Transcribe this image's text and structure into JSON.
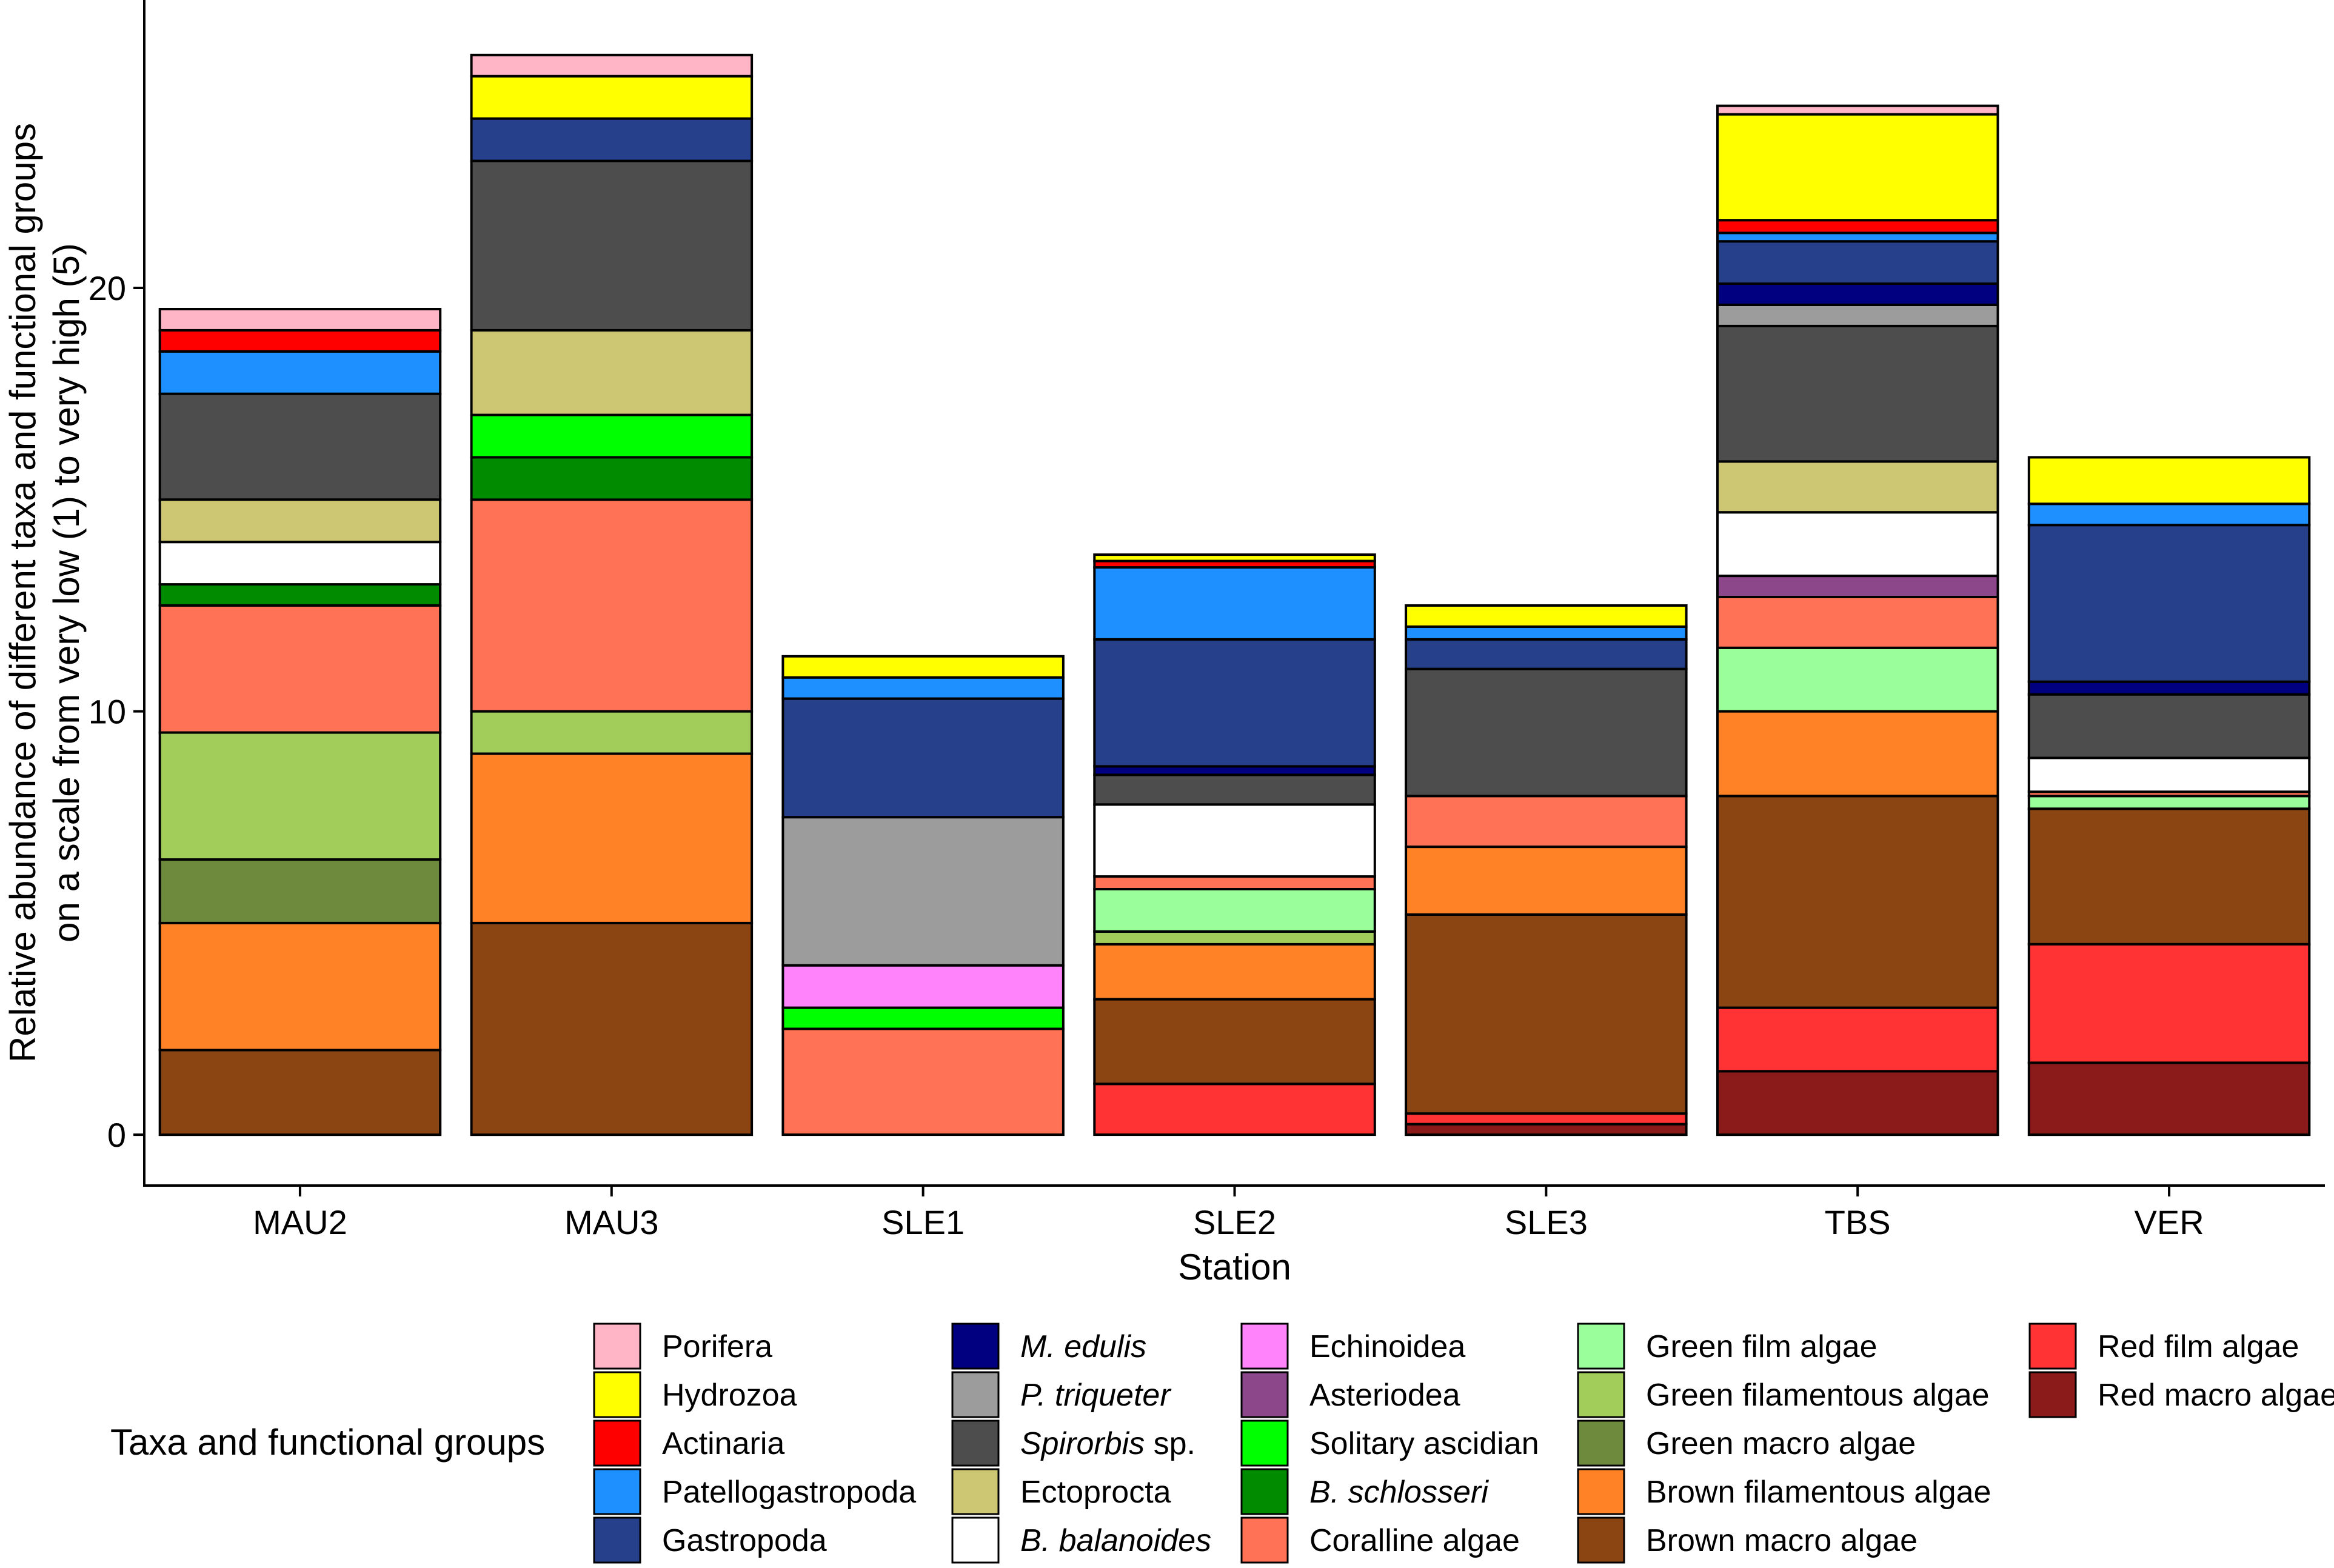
{
  "chart_data": {
    "type": "bar",
    "stacked": true,
    "xlabel": "Station",
    "ylabel_lines": [
      "Relative abundance of different taxa and functional groups",
      "on a scale from very low (1) to very high (5)"
    ],
    "ylim": [
      -1.2,
      26.8
    ],
    "yticks": [
      0,
      10,
      20
    ],
    "categories": [
      "MAU2",
      "MAU3",
      "SLE1",
      "SLE2",
      "SLE3",
      "TBS",
      "VER"
    ],
    "legend_title": "Taxa and functional groups",
    "series": [
      {
        "name": "Red macro algae",
        "color": "#8B1A1A",
        "values": [
          0,
          0,
          0,
          0,
          0.25,
          1.5,
          1.7
        ]
      },
      {
        "name": "Red film algae",
        "color": "#FF3333",
        "values": [
          0,
          0,
          0,
          1.2,
          0.25,
          1.5,
          2.8
        ]
      },
      {
        "name": "Brown macro algae",
        "color": "#8B4513",
        "values": [
          2,
          5,
          0,
          2,
          4.7,
          5,
          3.2
        ]
      },
      {
        "name": "Brown filamentous algae",
        "color": "#FF8227",
        "values": [
          3,
          4,
          0,
          1.3,
          1.6,
          2,
          0
        ]
      },
      {
        "name": "Green macro algae",
        "color": "#6E8B3D",
        "values": [
          1.5,
          0,
          0,
          0,
          0,
          0,
          0
        ]
      },
      {
        "name": "Green filamentous algae",
        "color": "#A2CD5A",
        "values": [
          3,
          1,
          0,
          0.3,
          0,
          0,
          0
        ]
      },
      {
        "name": "Green film algae",
        "color": "#9AFF9A",
        "values": [
          0,
          0,
          0,
          1,
          0,
          1.5,
          0.3
        ]
      },
      {
        "name": "Coralline algae",
        "color": "#FF7256",
        "values": [
          3,
          5,
          2.5,
          0.3,
          1.2,
          1.2,
          0.1
        ]
      },
      {
        "name": "B. schlosseri",
        "color": "#008B00",
        "values": [
          0.5,
          1,
          0,
          0,
          0,
          0,
          0
        ]
      },
      {
        "name": "Solitary ascidian",
        "color": "#00FF00",
        "values": [
          0,
          1,
          0.5,
          0,
          0,
          0,
          0
        ]
      },
      {
        "name": "Asteriodea",
        "color": "#8B4789",
        "values": [
          0,
          0,
          0,
          0,
          0,
          0.5,
          0
        ]
      },
      {
        "name": "Echinoidea",
        "color": "#FF83FA",
        "values": [
          0,
          0,
          1,
          0,
          0,
          0,
          0
        ]
      },
      {
        "name": "B. balanoides",
        "color": "#FFFFFF",
        "values": [
          1,
          0,
          0,
          1.7,
          0,
          1.5,
          0.8
        ]
      },
      {
        "name": "Ectoprocta",
        "color": "#CDC673",
        "values": [
          1,
          2,
          0,
          0,
          0,
          1.2,
          0
        ]
      },
      {
        "name": "Spirorbis sp.",
        "color": "#4D4D4D",
        "values": [
          2.5,
          4,
          0,
          0.7,
          3,
          3.2,
          1.5
        ]
      },
      {
        "name": "P. triqueter",
        "color": "#9C9C9C",
        "values": [
          0,
          0,
          3.5,
          0,
          0,
          0.5,
          0
        ]
      },
      {
        "name": "M. edulis",
        "color": "#000080",
        "values": [
          0,
          0,
          0,
          0.2,
          0,
          0.5,
          0.3
        ]
      },
      {
        "name": "Gastropoda",
        "color": "#27408B",
        "values": [
          0,
          1,
          2.8,
          3,
          0.7,
          1,
          3.7
        ]
      },
      {
        "name": "Patellogastropoda",
        "color": "#1E90FF",
        "values": [
          1,
          0,
          0.5,
          1.7,
          0.3,
          0.2,
          0.5
        ]
      },
      {
        "name": "Actinaria",
        "color": "#FF0000",
        "values": [
          0.5,
          0,
          0,
          0.15,
          0,
          0.3,
          0
        ]
      },
      {
        "name": "Hydrozoa",
        "color": "#FFFF00",
        "values": [
          0,
          1,
          0.5,
          0.15,
          0.5,
          2.5,
          1.1
        ]
      },
      {
        "name": "Porifera",
        "color": "#FFB5C5",
        "values": [
          0.5,
          0.5,
          0,
          0,
          0,
          0.2,
          0
        ]
      }
    ],
    "legend_columns": [
      [
        "Porifera",
        "Hydrozoa",
        "Actinaria",
        "Patellogastropoda",
        "Gastropoda"
      ],
      [
        "M. edulis",
        "P. triqueter",
        "Spirorbis sp.",
        "Ectoprocta",
        "B. balanoides"
      ],
      [
        "Echinoidea",
        "Asteriodea",
        "Solitary ascidian",
        "B. schlosseri",
        "Coralline algae"
      ],
      [
        "Green film algae",
        "Green filamentous algae",
        "Green macro algae",
        "Brown filamentous algae",
        "Brown macro algae"
      ],
      [
        "Red film algae",
        "Red macro algae"
      ]
    ],
    "legend_label_parts": {
      "M. edulis": [
        {
          "text": "M. edulis",
          "italic": true
        }
      ],
      "P. triqueter": [
        {
          "text": "P. triqueter",
          "italic": true
        }
      ],
      "Spirorbis sp.": [
        {
          "text": "Spirorbis",
          "italic": true
        },
        {
          "text": " sp.",
          "italic": false
        }
      ],
      "B. balanoides": [
        {
          "text": "B. balanoides",
          "italic": true
        }
      ],
      "B. schlosseri": [
        {
          "text": "B. schlosseri",
          "italic": true
        }
      ]
    }
  }
}
